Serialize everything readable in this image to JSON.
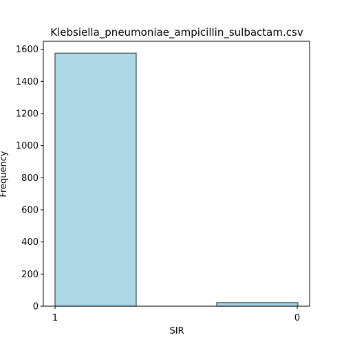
{
  "chart_data": {
    "type": "bar",
    "title": "Klebsiella_pneumoniae_ampicillin_sulbactam.csv",
    "xlabel": "SIR",
    "ylabel": "Frequency",
    "categories": [
      "1",
      "0"
    ],
    "values": [
      1576,
      22
    ],
    "ylim": [
      0,
      1650
    ],
    "yticks": [
      0,
      200,
      400,
      600,
      800,
      1000,
      1200,
      1400,
      1600
    ],
    "grid": false,
    "legend": "none",
    "colors": {
      "bar_fill": "#add8e6",
      "bar_edge": "#2f4f4f",
      "axis": "#000000"
    }
  }
}
